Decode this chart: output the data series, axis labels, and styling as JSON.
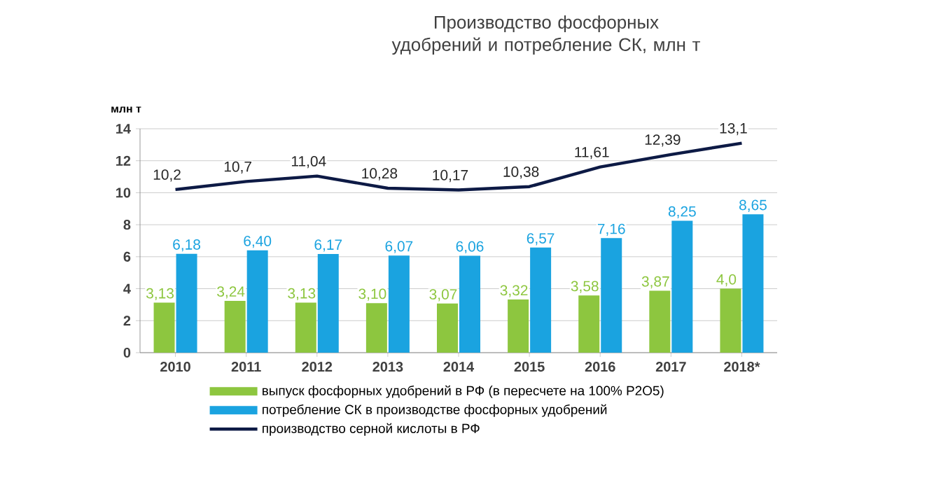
{
  "chart_data": {
    "type": "bar",
    "title": "Производство фосфорных удобрений и потребление СК, млн т",
    "ylabel": "млн т",
    "categories": [
      "2010",
      "2011",
      "2012",
      "2013",
      "2014",
      "2015",
      "2016",
      "2017",
      "2018*"
    ],
    "series": [
      {
        "name": "выпуск фосфорных удобрений  в РФ (в пересчете  на 100% P2O5)",
        "color": "#8dc63f",
        "values": [
          3.13,
          3.24,
          3.13,
          3.1,
          3.07,
          3.32,
          3.58,
          3.87,
          4.0
        ],
        "value_labels": [
          "3,13",
          "3,24",
          "3,13",
          "3,10",
          "3,07",
          "3,32",
          "3,58",
          "3,87",
          "4,0"
        ]
      },
      {
        "name": "потребление  СК в производстве  фосфорных удобрений",
        "color": "#1aa3e0",
        "values": [
          6.18,
          6.4,
          6.17,
          6.07,
          6.06,
          6.57,
          7.16,
          8.25,
          8.65
        ],
        "value_labels": [
          "6,18",
          "6,40",
          "6,17",
          "6,07",
          "6,06",
          "6,57",
          "7,16",
          "8,25",
          "8,65"
        ]
      },
      {
        "name": "производство серной кислоты в РФ",
        "type": "line",
        "color": "#0d1a45",
        "values": [
          10.2,
          10.7,
          11.04,
          10.28,
          10.17,
          10.38,
          11.61,
          12.39,
          13.1
        ],
        "value_labels": [
          "10,2",
          "10,7",
          "11,04",
          "10,28",
          "10,17",
          "10,38",
          "11,61",
          "12,39",
          "13,1"
        ]
      }
    ],
    "ylim": [
      0,
      14
    ],
    "yticks": [
      0,
      2,
      4,
      6,
      8,
      10,
      12,
      14
    ],
    "grid": "y",
    "legend": "bottom",
    "marker": "none",
    "line_style": "solid"
  }
}
